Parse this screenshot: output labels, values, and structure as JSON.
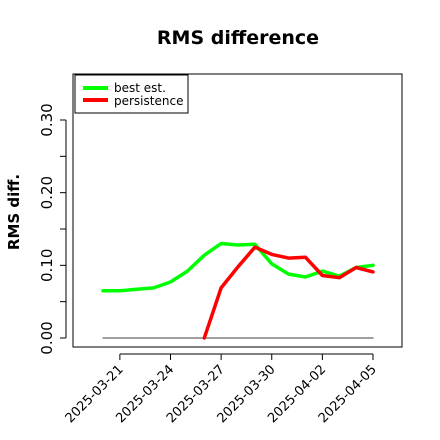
{
  "chart_data": {
    "type": "line",
    "title": "RMS difference",
    "xlabel": "",
    "ylabel": "RMS diff.",
    "x": [
      "2025-03-20",
      "2025-03-21",
      "2025-03-22",
      "2025-03-23",
      "2025-03-24",
      "2025-03-25",
      "2025-03-26",
      "2025-03-27",
      "2025-03-28",
      "2025-03-29",
      "2025-03-30",
      "2025-03-31",
      "2025-04-01",
      "2025-04-02",
      "2025-04-03",
      "2025-04-04",
      "2025-04-05"
    ],
    "x_tick_labels": [
      "2025-03-21",
      "2025-03-24",
      "2025-03-27",
      "2025-03-30",
      "2025-04-02",
      "2025-04-05"
    ],
    "y_ticks": [
      "0.00",
      "0.10",
      "0.20",
      "0.30"
    ],
    "ylim": [
      -0.005,
      0.36
    ],
    "series": [
      {
        "name": "best est.",
        "color": "#00ff00",
        "values": [
          0.065,
          0.065,
          0.067,
          0.069,
          0.077,
          0.092,
          0.114,
          0.13,
          0.128,
          0.129,
          0.102,
          0.088,
          0.084,
          0.092,
          0.085,
          0.097,
          0.1
        ]
      },
      {
        "name": "persistence",
        "color": "#ff0000",
        "values": [
          null,
          null,
          null,
          null,
          null,
          null,
          0.0,
          0.069,
          0.098,
          0.125,
          0.115,
          0.11,
          0.111,
          0.086,
          0.083,
          0.097,
          0.091
        ]
      },
      {
        "name": "",
        "color": "#808080",
        "values": [
          0,
          0,
          0,
          0,
          0,
          0,
          0,
          0,
          0,
          0,
          0,
          0,
          0,
          0,
          0,
          0,
          0
        ]
      }
    ],
    "legend_position": "top-left",
    "grid": false
  }
}
